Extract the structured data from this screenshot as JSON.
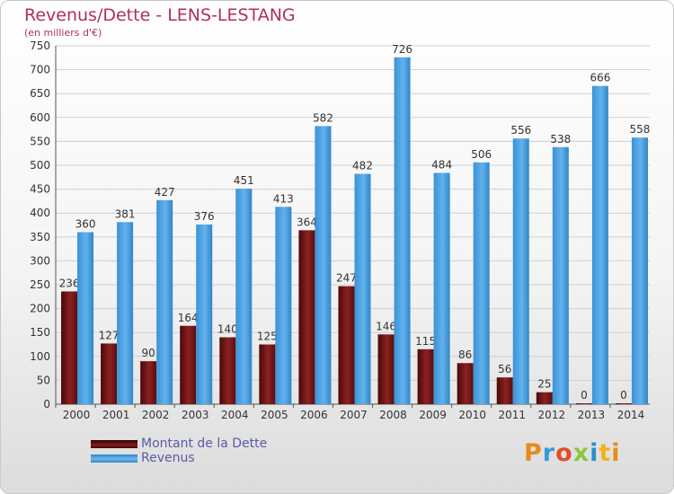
{
  "header": {
    "title": "Revenus/Dette - LENS-LESTANG",
    "subtitle": "(en milliers d'€)"
  },
  "legend": {
    "dette_label": "Montant de la Dette",
    "revenus_label": "Revenus"
  },
  "logo": {
    "text": "Proxiti"
  },
  "colors": {
    "dette": "#7a1a1a",
    "revenus": "#4aa3e6",
    "title": "#b0305a"
  },
  "chart_data": {
    "type": "bar",
    "categories": [
      "2000",
      "2001",
      "2002",
      "2003",
      "2004",
      "2005",
      "2006",
      "2007",
      "2008",
      "2009",
      "2010",
      "2011",
      "2012",
      "2013",
      "2014"
    ],
    "series": [
      {
        "name": "Montant de la Dette",
        "values": [
          236,
          127,
          90,
          164,
          140,
          125,
          364,
          247,
          146,
          115,
          86,
          56,
          25,
          0,
          0
        ]
      },
      {
        "name": "Revenus",
        "values": [
          360,
          381,
          427,
          376,
          451,
          413,
          582,
          482,
          726,
          484,
          506,
          556,
          538,
          666,
          558
        ]
      }
    ],
    "ylim": [
      0,
      750
    ],
    "yticks": [
      0,
      50,
      100,
      150,
      200,
      250,
      300,
      350,
      400,
      450,
      500,
      550,
      600,
      650,
      700,
      750
    ],
    "grid": true,
    "legend_position": "bottom-left"
  }
}
